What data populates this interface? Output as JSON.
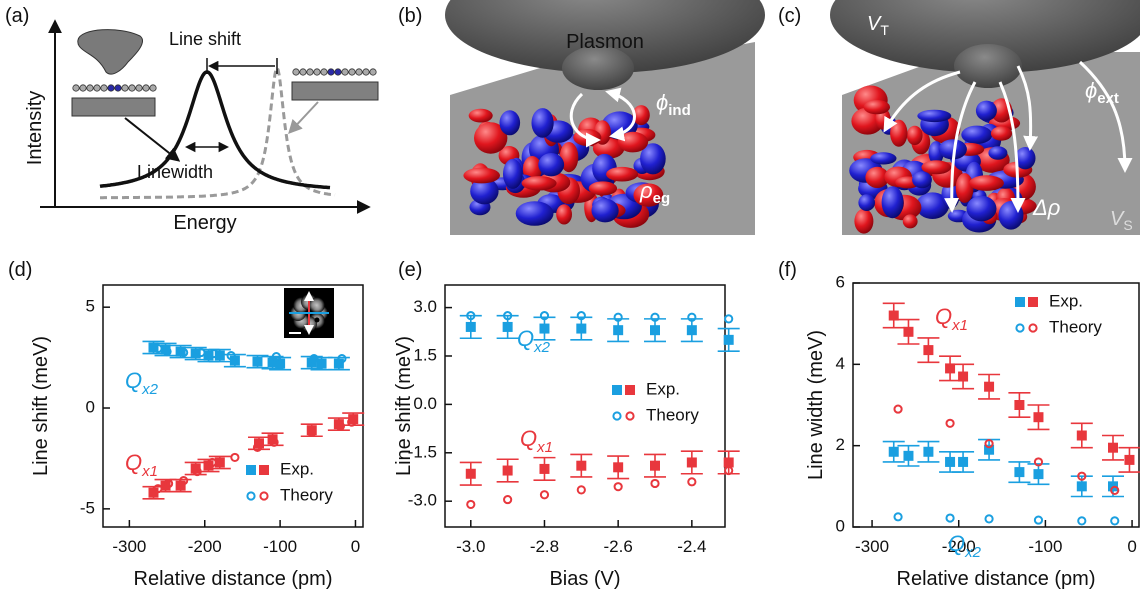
{
  "panels": [
    {
      "label": "(a)",
      "line_shift": "Line shift",
      "linewidth": "Linewidth",
      "y_label": "Intensity",
      "x_label": "Energy"
    },
    {
      "label": "(b)",
      "plasmon": "Plasmon",
      "phi": {
        "symbol": "ϕ",
        "subscript": "ind"
      },
      "rho": {
        "symbol": "ρ",
        "subscript": "eg"
      }
    },
    {
      "label": "(c)",
      "v_tip": {
        "symbol": "V",
        "subscript": "T"
      },
      "phi": {
        "symbol": "ϕ",
        "subscript": "ext"
      },
      "delta_rho": "Δρ",
      "v_sample": {
        "symbol": "V",
        "subscript": "S"
      }
    }
  ],
  "chart_data": [
    {
      "type": "scatter",
      "label": "(d)",
      "x_label": "Relative distance (pm)",
      "y_label": "Line shift (meV)",
      "xlim": [
        -335,
        10
      ],
      "xticks": [
        -300,
        -200,
        -100,
        0
      ],
      "ylim": [
        -5.9,
        6.1
      ],
      "yticks": [
        -5,
        0,
        5
      ],
      "series": [
        {
          "color": "#1a9fe0",
          "marker": "square",
          "x": [
            -268,
            -252,
            -232,
            -212,
            -195,
            -180,
            -160,
            -130,
            -110,
            -100,
            -58,
            -45,
            -22
          ],
          "values": [
            3.0,
            2.9,
            2.8,
            2.7,
            2.6,
            2.6,
            2.35,
            2.3,
            2.25,
            2.2,
            2.25,
            2.2,
            2.2
          ],
          "errors": [
            0.3,
            0.3,
            0.3,
            0.3,
            0.3,
            0.3,
            0.3,
            0.3,
            0.3,
            0.3,
            0.3,
            0.3,
            0.3
          ]
        },
        {
          "color": "#1a9fe0",
          "marker": "circle",
          "x": [
            -262,
            -250,
            -228,
            -205,
            -188,
            -165,
            -105,
            -55,
            -18
          ],
          "values": [
            2.95,
            2.8,
            2.75,
            2.75,
            2.7,
            2.6,
            2.55,
            2.45,
            2.45
          ]
        },
        {
          "color": "#e8373d",
          "marker": "square",
          "x": [
            -268,
            -252,
            -232,
            -212,
            -195,
            -180,
            -128,
            -110,
            -58,
            -22,
            -3
          ],
          "values": [
            -4.2,
            -3.85,
            -3.85,
            -3.0,
            -2.85,
            -2.7,
            -1.75,
            -1.55,
            -1.1,
            -0.8,
            -0.55
          ],
          "errors": [
            0.3,
            0.3,
            0.3,
            0.3,
            0.3,
            0.3,
            0.3,
            0.3,
            0.3,
            0.3,
            0.3
          ]
        },
        {
          "color": "#e8373d",
          "marker": "circle",
          "x": [
            -262,
            -248,
            -228,
            -210,
            -190,
            -160,
            -130,
            -108,
            -58,
            -20,
            -5
          ],
          "values": [
            -4.0,
            -3.75,
            -3.6,
            -3.15,
            -2.7,
            -2.45,
            -1.95,
            -1.7,
            -1.2,
            -0.9,
            -0.7
          ]
        }
      ],
      "legend": [
        {
          "label": "Exp.",
          "marker": "square"
        },
        {
          "label": "Theory",
          "marker": "circle"
        }
      ],
      "annotations": [
        {
          "text": "Q",
          "subscript": "x2",
          "color": "#1a9fe0"
        },
        {
          "text": "Q",
          "subscript": "x1",
          "color": "#e8373d"
        }
      ],
      "inset": true
    },
    {
      "type": "scatter",
      "label": "(e)",
      "x_label": "Bias (V)",
      "y_label": "Line shift (meV)",
      "xlim": [
        -3.07,
        -2.31
      ],
      "xticks": [
        {
          "value": -3,
          "label": "-3.0"
        },
        -2.8,
        -2.6,
        -2.4
      ],
      "ylim": [
        -3.8,
        3.7
      ],
      "yticks": [
        {
          "value": -3,
          "label": "-3.0"
        },
        -1.5,
        {
          "value": 0,
          "label": "0.0"
        },
        1.5,
        {
          "value": 3,
          "label": "3.0"
        }
      ],
      "series": [
        {
          "color": "#1a9fe0",
          "marker": "square",
          "x": [
            -3.0,
            -2.9,
            -2.8,
            -2.7,
            -2.6,
            -2.5,
            -2.4,
            -2.3
          ],
          "values": [
            2.4,
            2.4,
            2.35,
            2.35,
            2.3,
            2.3,
            2.3,
            2.0
          ],
          "errors": [
            0.35,
            0.35,
            0.35,
            0.35,
            0.35,
            0.35,
            0.35,
            0.35
          ]
        },
        {
          "color": "#1a9fe0",
          "marker": "circle",
          "x": [
            -3.0,
            -2.9,
            -2.8,
            -2.7,
            -2.6,
            -2.5,
            -2.4,
            -2.3
          ],
          "values": [
            2.75,
            2.75,
            2.75,
            2.75,
            2.7,
            2.7,
            2.7,
            2.65
          ]
        },
        {
          "color": "#e8373d",
          "marker": "square",
          "x": [
            -3.0,
            -2.9,
            -2.8,
            -2.7,
            -2.6,
            -2.5,
            -2.4,
            -2.3
          ],
          "values": [
            -2.15,
            -2.05,
            -2.0,
            -1.9,
            -1.95,
            -1.9,
            -1.8,
            -1.8
          ],
          "errors": [
            0.35,
            0.35,
            0.35,
            0.35,
            0.35,
            0.35,
            0.35,
            0.35
          ]
        },
        {
          "color": "#e8373d",
          "marker": "circle",
          "x": [
            -3.0,
            -2.9,
            -2.8,
            -2.7,
            -2.6,
            -2.5,
            -2.4,
            -2.3
          ],
          "values": [
            -3.1,
            -2.95,
            -2.8,
            -2.65,
            -2.55,
            -2.45,
            -2.4,
            -2.05
          ]
        }
      ],
      "legend": [
        {
          "label": "Exp.",
          "marker": "square"
        },
        {
          "label": "Theory",
          "marker": "circle"
        }
      ],
      "annotations": [
        {
          "text": "Q",
          "subscript": "x2",
          "color": "#1a9fe0"
        },
        {
          "text": "Q",
          "subscript": "x1",
          "color": "#e8373d"
        }
      ]
    },
    {
      "type": "scatter",
      "label": "(f)",
      "x_label": "Relative distance (pm)",
      "y_label": "Line width (meV)",
      "xlim": [
        -322,
        8
      ],
      "xticks": [
        -300,
        -200,
        -100,
        0
      ],
      "ylim": [
        0,
        6
      ],
      "yticks": [
        0,
        2,
        4,
        6
      ],
      "series": [
        {
          "color": "#1a9fe0",
          "marker": "square",
          "x": [
            -275,
            -258,
            -235,
            -210,
            -195,
            -165,
            -130,
            -108,
            -58,
            -22
          ],
          "values": [
            1.85,
            1.75,
            1.85,
            1.6,
            1.6,
            1.9,
            1.35,
            1.3,
            1.0,
            1.0
          ],
          "errors": [
            0.25,
            0.25,
            0.25,
            0.25,
            0.25,
            0.25,
            0.25,
            0.25,
            0.25,
            0.25
          ]
        },
        {
          "color": "#1a9fe0",
          "marker": "circle",
          "x": [
            -270,
            -210,
            -165,
            -108,
            -58,
            -20
          ],
          "values": [
            0.25,
            0.22,
            0.2,
            0.17,
            0.15,
            0.15
          ]
        },
        {
          "color": "#e8373d",
          "marker": "square",
          "x": [
            -275,
            -258,
            -235,
            -210,
            -195,
            -165,
            -130,
            -108,
            -58,
            -22,
            -3
          ],
          "values": [
            5.2,
            4.8,
            4.35,
            3.9,
            3.7,
            3.45,
            3.0,
            2.7,
            2.25,
            1.95,
            1.65
          ],
          "errors": [
            0.3,
            0.3,
            0.3,
            0.3,
            0.3,
            0.3,
            0.3,
            0.3,
            0.3,
            0.3,
            0.3
          ]
        },
        {
          "color": "#e8373d",
          "marker": "circle",
          "x": [
            -270,
            -210,
            -165,
            -108,
            -58,
            -20
          ],
          "values": [
            2.9,
            2.55,
            2.05,
            1.6,
            1.25,
            0.9
          ]
        }
      ],
      "legend": [
        {
          "label": "Exp.",
          "marker": "square"
        },
        {
          "label": "Theory",
          "marker": "circle"
        }
      ],
      "annotations": [
        {
          "text": "Q",
          "subscript": "x1",
          "color": "#e8373d"
        },
        {
          "text": "Q",
          "subscript": "x2",
          "color": "#1a9fe0"
        }
      ]
    }
  ]
}
